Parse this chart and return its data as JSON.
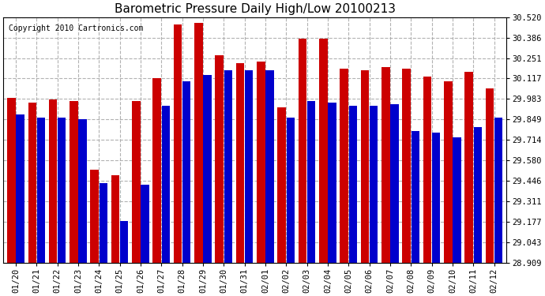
{
  "title": "Barometric Pressure Daily High/Low 20100213",
  "copyright": "Copyright 2010 Cartronics.com",
  "dates": [
    "01/20",
    "01/21",
    "01/22",
    "01/23",
    "01/24",
    "01/25",
    "01/26",
    "01/27",
    "01/28",
    "01/29",
    "01/30",
    "01/31",
    "02/01",
    "02/02",
    "02/03",
    "02/04",
    "02/05",
    "02/06",
    "02/07",
    "02/08",
    "02/09",
    "02/10",
    "02/11",
    "02/12"
  ],
  "highs": [
    29.99,
    29.96,
    29.98,
    29.97,
    29.52,
    29.48,
    29.97,
    30.12,
    30.47,
    30.48,
    30.27,
    30.22,
    30.23,
    29.93,
    30.38,
    30.38,
    30.18,
    30.17,
    30.19,
    30.18,
    30.13,
    30.1,
    30.16,
    30.05
  ],
  "lows": [
    29.88,
    29.86,
    29.86,
    29.85,
    29.43,
    29.18,
    29.42,
    29.94,
    30.1,
    30.14,
    30.17,
    30.17,
    30.17,
    29.86,
    29.97,
    29.96,
    29.94,
    29.94,
    29.95,
    29.77,
    29.76,
    29.73,
    29.8,
    29.86
  ],
  "high_color": "#cc0000",
  "low_color": "#0000cc",
  "bg_color": "#ffffff",
  "plot_bg_color": "#ffffff",
  "grid_color": "#aaaaaa",
  "ymin": 28.909,
  "ymax": 30.52,
  "yticks": [
    28.909,
    29.043,
    29.177,
    29.311,
    29.446,
    29.58,
    29.714,
    29.849,
    29.983,
    30.117,
    30.251,
    30.386,
    30.52
  ]
}
